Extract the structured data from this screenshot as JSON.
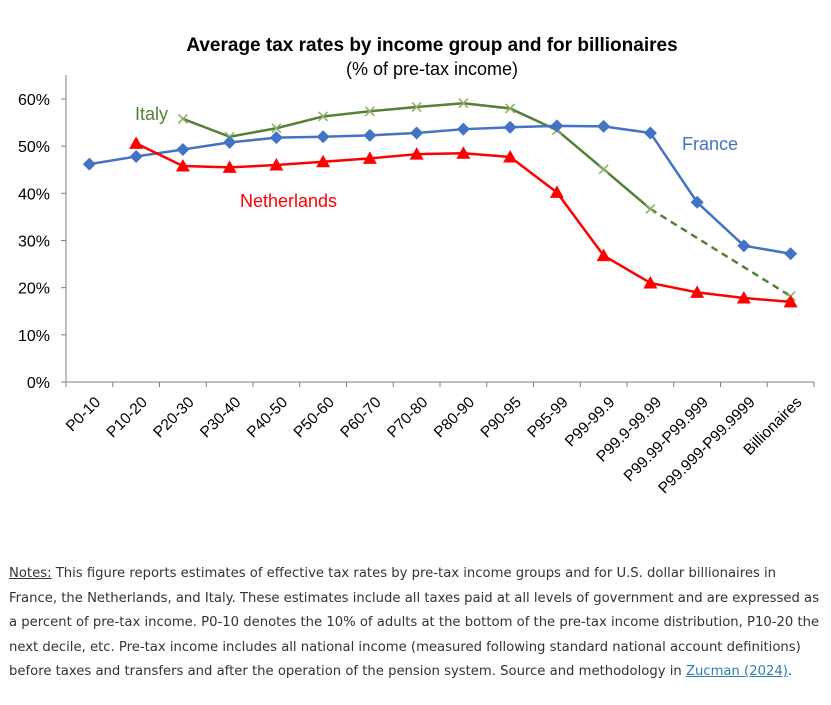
{
  "chart_data": {
    "type": "line",
    "title": "Average tax rates by income group and for billionaires",
    "subtitle": "(% of pre-tax income)",
    "categories": [
      "P0-10",
      "P10-20",
      "P20-30",
      "P30-40",
      "P40-50",
      "P50-60",
      "P60-70",
      "P70-80",
      "P80-90",
      "P90-95",
      "P95-99",
      "P99-99.9",
      "P99.9-99.99",
      "P99.99-P99.999",
      "P99.999-P99.9999",
      "Billionaires"
    ],
    "ylim": [
      0,
      60
    ],
    "yticks": [
      0,
      10,
      20,
      30,
      40,
      50,
      60
    ],
    "ytick_labels": [
      "0%",
      "10%",
      "20%",
      "30%",
      "40%",
      "50%",
      "60%"
    ],
    "grid": false,
    "series": [
      {
        "name": "France",
        "color": "#4472c4",
        "marker": "diamond",
        "values": [
          46.2,
          47.8,
          49.3,
          50.8,
          51.8,
          52.0,
          52.3,
          52.8,
          53.6,
          54.0,
          54.3,
          54.2,
          52.8,
          38.1,
          28.9,
          27.2
        ]
      },
      {
        "name": "Netherlands",
        "color": "#ff0000",
        "marker": "triangle",
        "values": [
          null,
          50.6,
          45.8,
          45.5,
          46.0,
          46.7,
          47.4,
          48.3,
          48.5,
          47.7,
          40.2,
          26.8,
          21.0,
          19.0,
          17.8,
          17.0
        ]
      },
      {
        "name": "Italy",
        "color": "#548235",
        "marker": "x",
        "values": [
          null,
          null,
          55.8,
          52.0,
          53.8,
          56.3,
          57.4,
          58.3,
          59.1,
          58.0,
          53.4,
          45.1,
          36.7,
          null,
          null,
          18.2
        ],
        "dashed_segment": {
          "from": "P99.9-99.99",
          "to": "Billionaires"
        }
      }
    ]
  },
  "notes": {
    "label": "Notes:",
    "text": " This figure reports estimates of effective tax rates by pre-tax income groups and for U.S. dollar billionaires in France, the Netherlands, and Italy. These estimates include all taxes paid at all levels of government and are expressed as a percent of pre-tax income. P0-10 denotes the 10% of adults at the bottom of the pre-tax income distribution, P10-20 the next decile, etc. Pre-tax income includes all national income (measured following standard national account definitions) before taxes and transfers and after the operation of the pension system. Source and methodology in ",
    "link_text": "Zucman (2024)",
    "end": "."
  }
}
